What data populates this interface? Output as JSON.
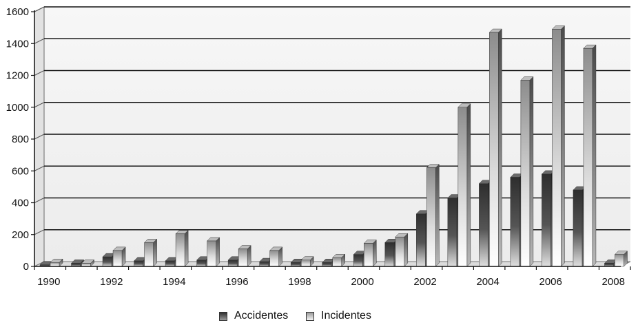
{
  "chart_data": {
    "type": "bar",
    "categories": [
      "1990",
      "1991",
      "1992",
      "1993",
      "1994",
      "1995",
      "1996",
      "1997",
      "1998",
      "1999",
      "2000",
      "2001",
      "2002",
      "2003",
      "2004",
      "2005",
      "2006",
      "2007",
      "2008"
    ],
    "x_tick_labels": [
      "1990",
      "1992",
      "1994",
      "1996",
      "1998",
      "2000",
      "2002",
      "2004",
      "2006",
      "2008"
    ],
    "series": [
      {
        "name": "Accidentes",
        "values": [
          10,
          20,
          60,
          35,
          35,
          40,
          40,
          30,
          25,
          25,
          75,
          150,
          330,
          430,
          520,
          560,
          580,
          480,
          20
        ]
      },
      {
        "name": "Incidentes",
        "values": [
          25,
          20,
          100,
          150,
          205,
          160,
          110,
          100,
          40,
          55,
          145,
          185,
          620,
          1000,
          1470,
          1170,
          1490,
          1370,
          75
        ]
      }
    ],
    "ylim": [
      0,
      1600
    ],
    "y_ticks": [
      0,
      200,
      400,
      600,
      800,
      1000,
      1200,
      1400,
      1600
    ],
    "y_tick_labels": [
      "0",
      "200",
      "400",
      "600",
      "800",
      "1000",
      "1200",
      "1400",
      "1600"
    ],
    "grid": true,
    "legend_position": "bottom",
    "colors": {
      "accidentes": "#3a3a3a",
      "incidentes": "#d8d8d8"
    }
  }
}
